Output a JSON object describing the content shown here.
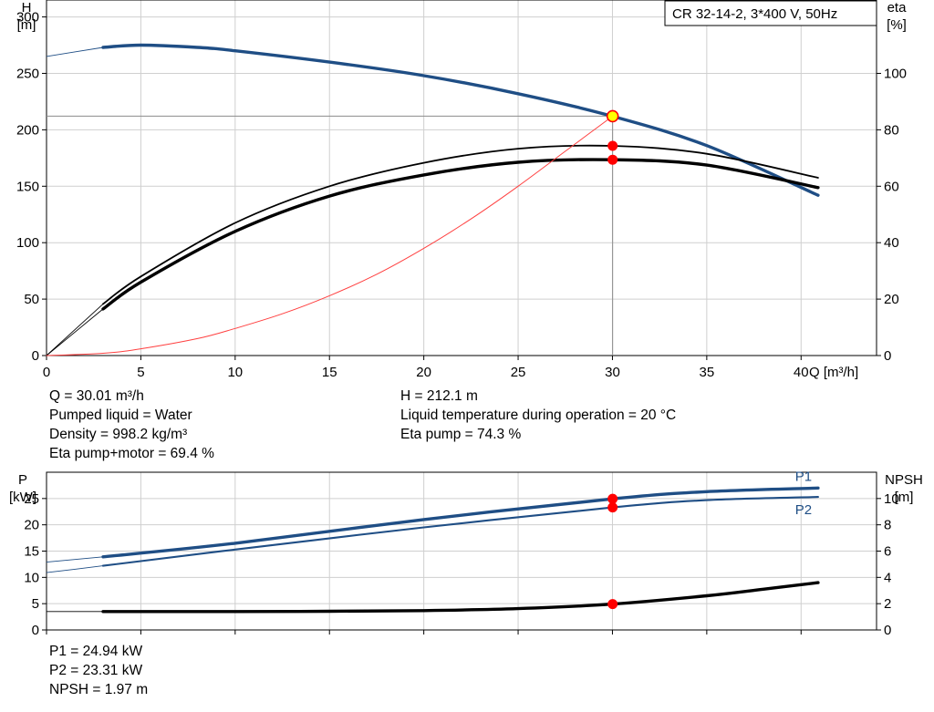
{
  "title_box": "CR 32-14-2, 3*400 V, 50Hz",
  "info_top_left": [
    "Q = 30.01 m³/h",
    "Pumped liquid = Water",
    "Density = 998.2 kg/m³",
    "Eta pump+motor = 69.4 %"
  ],
  "info_top_right": [
    "H = 212.1 m",
    "Liquid temperature during operation = 20 °C",
    "Eta pump = 74.3 %"
  ],
  "info_bottom_left": [
    "P1 = 24.94 kW",
    "P2 = 23.31 kW",
    "NPSH = 1.97 m"
  ],
  "colors": {
    "head_curve": "#1f4e85",
    "power_curve": "#1f4e85",
    "efficiency_curve": "#000000",
    "system_curve": "#ff4040",
    "operating_point": "#ff0000",
    "duty_point_fill": "#ffff00",
    "grid": "#cfcfcf",
    "reference_line": "#8c8c8c"
  },
  "chart_data": [
    {
      "type": "line",
      "name": "head-and-efficiency",
      "xlabel": "Q [m³/h]",
      "ylabel": [
        "H",
        "[m]"
      ],
      "y2label": [
        "eta",
        "[%]"
      ],
      "xlim": [
        0,
        44
      ],
      "ylim": [
        0,
        315
      ],
      "y2lim": [
        0,
        126
      ],
      "xticks": [
        0,
        5,
        10,
        15,
        20,
        25,
        30,
        35,
        40
      ],
      "yticks": [
        0,
        50,
        100,
        150,
        200,
        250,
        300
      ],
      "y2ticks": [
        0,
        20,
        40,
        60,
        80,
        100
      ],
      "grid": true,
      "series": [
        {
          "key": "H",
          "axis": "left",
          "style": "bold-blue",
          "x": [
            3,
            5,
            8,
            10,
            15,
            20,
            25,
            30,
            35,
            40.9
          ],
          "y": [
            273,
            275,
            273,
            270,
            260,
            248,
            232,
            212,
            186,
            142
          ],
          "ext_x": [
            0,
            3
          ],
          "ext_y": [
            265,
            273
          ]
        },
        {
          "key": "eta_pump",
          "axis": "right",
          "style": "thin-black",
          "x": [
            3,
            5,
            10,
            15,
            20,
            25,
            30,
            35,
            40.9
          ],
          "y": [
            18.3,
            28,
            47,
            60,
            68.3,
            73.3,
            74.3,
            71.5,
            63
          ],
          "ext_x": [
            0,
            3
          ],
          "ext_y": [
            0,
            18.3
          ]
        },
        {
          "key": "eta_pump_motor",
          "axis": "right",
          "style": "bold-black",
          "x": [
            3,
            5,
            10,
            15,
            20,
            25,
            30,
            35,
            40.9
          ],
          "y": [
            16.5,
            26,
            44,
            56.5,
            64,
            68.5,
            69.4,
            67.5,
            59.5
          ],
          "ext_x": [
            0,
            3
          ],
          "ext_y": [
            0,
            16.5
          ]
        },
        {
          "key": "system_curve",
          "axis": "left",
          "style": "thin-red",
          "x": [
            0,
            3,
            5,
            8,
            10,
            12.5,
            15,
            17.5,
            20,
            22.5,
            25,
            27.5,
            30
          ],
          "y": [
            0,
            2,
            6,
            15,
            24,
            37,
            53,
            72,
            95,
            121,
            150,
            181,
            212
          ]
        }
      ],
      "points": [
        {
          "x": 30.01,
          "y": 212.1,
          "axis": "left",
          "kind": "duty"
        },
        {
          "x": 30.01,
          "y": 74.3,
          "axis": "right",
          "kind": "operating"
        },
        {
          "x": 30.01,
          "y": 69.4,
          "axis": "right",
          "kind": "operating"
        }
      ]
    },
    {
      "type": "line",
      "name": "power-and-npsh",
      "ylabel": [
        "P",
        "[kW]"
      ],
      "y2label": [
        "NPSH",
        "[m]"
      ],
      "xlim": [
        0,
        44
      ],
      "ylim": [
        0,
        30
      ],
      "y2lim": [
        0,
        12
      ],
      "yticks": [
        0,
        5,
        10,
        15,
        20,
        25
      ],
      "y2ticks": [
        0,
        2,
        4,
        6,
        8,
        10
      ],
      "grid": true,
      "series": [
        {
          "key": "P1",
          "label": "P1",
          "axis": "left",
          "style": "bold-blue",
          "x": [
            3,
            10,
            20,
            30,
            35,
            40.9
          ],
          "y": [
            13.9,
            16.5,
            21,
            24.94,
            26.3,
            27
          ],
          "ext_x": [
            0,
            3
          ],
          "ext_y": [
            12.9,
            13.9
          ]
        },
        {
          "key": "P2",
          "label": "P2",
          "axis": "left",
          "style": "mid-blue",
          "x": [
            3,
            10,
            20,
            30,
            35,
            40.9
          ],
          "y": [
            12.2,
            15.3,
            19.5,
            23.31,
            24.7,
            25.3
          ],
          "ext_x": [
            0,
            3
          ],
          "ext_y": [
            10.9,
            12.2
          ]
        },
        {
          "key": "NPSH",
          "axis": "right",
          "style": "bold-black",
          "x": [
            3,
            10,
            15,
            20,
            25,
            30,
            35,
            38,
            40.9
          ],
          "y": [
            1.4,
            1.4,
            1.42,
            1.47,
            1.62,
            1.97,
            2.6,
            3.1,
            3.6
          ],
          "ext_x": [
            0,
            3
          ],
          "ext_y": [
            1.4,
            1.4
          ]
        }
      ],
      "points": [
        {
          "x": 30.01,
          "y": 24.94,
          "axis": "left",
          "kind": "operating"
        },
        {
          "x": 30.01,
          "y": 23.31,
          "axis": "left",
          "kind": "operating"
        },
        {
          "x": 30.01,
          "y": 1.97,
          "axis": "right",
          "kind": "operating"
        }
      ]
    }
  ]
}
